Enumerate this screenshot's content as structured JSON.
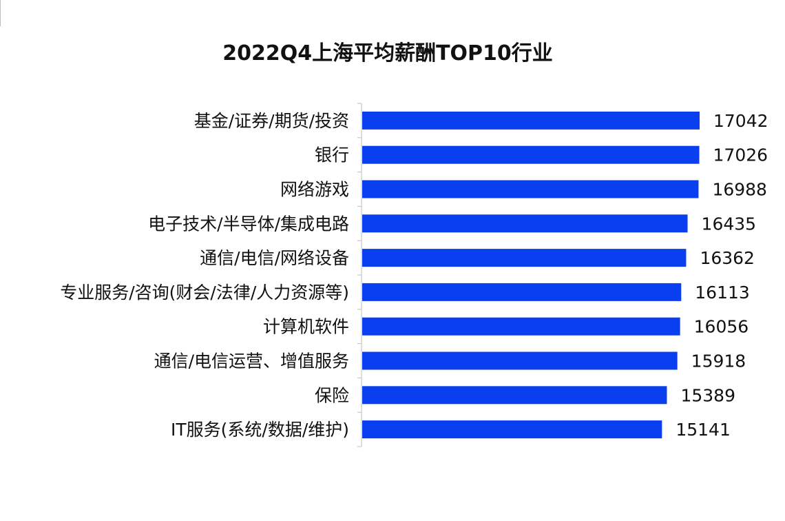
{
  "chart_data": {
    "type": "bar",
    "orientation": "horizontal",
    "title": "2022Q4上海平均薪酬TOP10行业",
    "xlabel": "",
    "ylabel": "",
    "xlim": [
      0,
      17042
    ],
    "grid": false,
    "legend": "none",
    "bar_color": "#0a3ff0",
    "categories": [
      "基金/证券/期货/投资",
      "银行",
      "网络游戏",
      "电子技术/半导体/集成电路",
      "通信/电信/网络设备",
      "专业服务/咨询(财会/法律/人力资源等)",
      "计算机软件",
      "通信/电信运营、增值服务",
      "保险",
      "IT服务(系统/数据/维护)"
    ],
    "values": [
      17042,
      17026,
      16988,
      16435,
      16362,
      16113,
      16056,
      15918,
      15389,
      15141
    ],
    "value_labels": [
      "17042",
      "17026",
      "16988",
      "16435",
      "16362",
      "16113",
      "16056",
      "15918",
      "15389",
      "15141"
    ]
  }
}
